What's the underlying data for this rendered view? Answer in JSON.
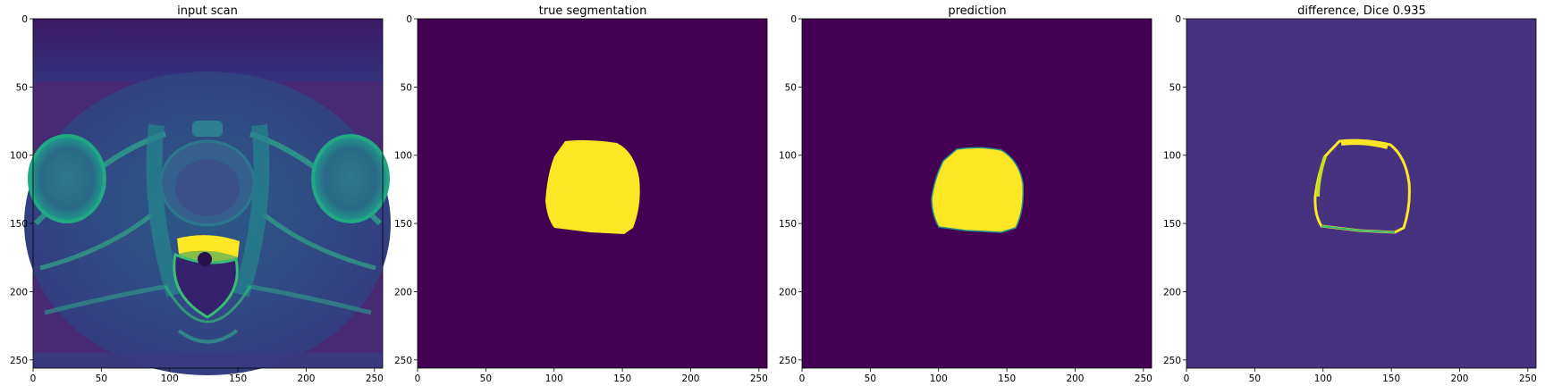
{
  "panels": [
    {
      "title": "input scan",
      "kind": "mri"
    },
    {
      "title": "true segmentation",
      "kind": "mask_true"
    },
    {
      "title": "prediction",
      "kind": "mask_pred"
    },
    {
      "title": "difference, Dice 0.935",
      "kind": "diff"
    }
  ],
  "axes": {
    "xticks": [
      "0",
      "50",
      "100",
      "150",
      "200",
      "250"
    ],
    "yticks": [
      "0",
      "50",
      "100",
      "150",
      "200",
      "250"
    ],
    "image_size": [
      256,
      256
    ]
  },
  "colors": {
    "background_dark": "#440154",
    "diff_background": "#46327e",
    "foreground": "#fde725",
    "edge_green": "#21918c"
  }
}
